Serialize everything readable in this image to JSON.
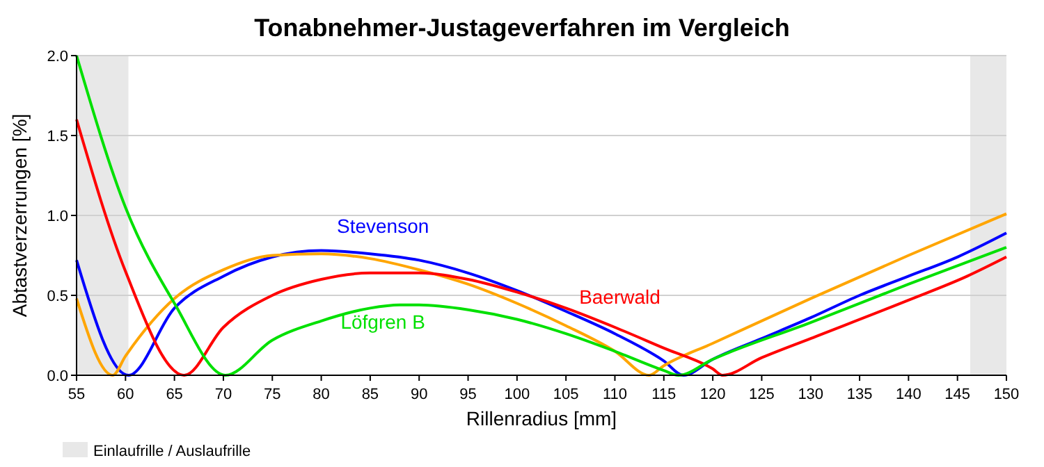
{
  "chart_data": {
    "type": "line",
    "title": "Tonabnehmer-Justageverfahren im Vergleich",
    "xlabel": "Rillenradius [mm]",
    "ylabel": "Abtastverzerrungen [%]",
    "xlim": [
      55,
      150
    ],
    "xticks": [
      55,
      60,
      65,
      70,
      75,
      80,
      85,
      90,
      95,
      100,
      105,
      110,
      115,
      120,
      125,
      130,
      135,
      140,
      145,
      150
    ],
    "ylim": [
      0,
      2
    ],
    "yticks": [
      {
        "value": 0,
        "label": "0.0"
      },
      {
        "value": 0.5,
        "label": "0.5"
      },
      {
        "value": 1,
        "label": "1.0"
      },
      {
        "value": 1.5,
        "label": "1.5"
      },
      {
        "value": 2,
        "label": "2.0"
      }
    ],
    "grid": "y",
    "legend": "bottom left",
    "bands": [
      {
        "axis": "x",
        "from": 55,
        "to": 60.3,
        "label": "Einlaufrille / Auslaufrille",
        "color": "#e8e8e8"
      },
      {
        "axis": "x",
        "from": 146.3,
        "to": 150,
        "color": "#e8e8e8"
      }
    ],
    "series": [
      {
        "name": "Stevenson",
        "color": "#0000ff",
        "x": [
          55,
          60.3,
          65,
          70,
          75,
          80,
          85,
          90,
          95,
          100,
          105,
          110,
          115,
          117,
          120,
          125,
          130,
          135,
          140,
          145,
          150
        ],
        "values": [
          0.72,
          0,
          0.42,
          0.62,
          0.74,
          0.78,
          0.76,
          0.72,
          0.64,
          0.53,
          0.4,
          0.26,
          0.09,
          0,
          0.1,
          0.23,
          0.36,
          0.5,
          0.62,
          0.74,
          0.89
        ]
      },
      {
        "color": "#ffa500",
        "x": [
          55,
          58.7,
          60,
          65,
          70,
          75,
          80,
          85,
          90,
          95,
          100,
          105,
          110,
          113.5,
          115,
          120,
          130,
          140,
          150
        ],
        "values": [
          0.48,
          0,
          0.12,
          0.48,
          0.66,
          0.75,
          0.76,
          0.73,
          0.66,
          0.57,
          0.45,
          0.31,
          0.15,
          0,
          0.06,
          0.2,
          0.48,
          0.75,
          1.01
        ]
      },
      {
        "name": "Baerwald",
        "color": "#ff0000",
        "x": [
          55,
          60,
          66,
          70,
          75,
          80,
          85,
          90,
          95,
          100,
          105,
          110,
          115,
          120,
          121,
          125,
          130,
          140,
          146,
          150
        ],
        "values": [
          1.6,
          0.65,
          0,
          0.3,
          0.5,
          0.6,
          0.64,
          0.64,
          0.6,
          0.52,
          0.42,
          0.3,
          0.17,
          0.04,
          0,
          0.11,
          0.23,
          0.47,
          0.62,
          0.74
        ]
      },
      {
        "name": "Löfgren B",
        "color": "#00e000",
        "x": [
          55,
          60,
          65,
          70.2,
          75,
          80,
          85,
          88,
          90,
          95,
          100,
          105,
          110,
          115,
          116.5,
          120,
          130,
          140,
          150
        ],
        "values": [
          2,
          1.05,
          0.45,
          0,
          0.22,
          0.34,
          0.42,
          0.44,
          0.44,
          0.41,
          0.35,
          0.26,
          0.15,
          0.03,
          0,
          0.1,
          0.33,
          0.57,
          0.8
        ]
      }
    ]
  }
}
